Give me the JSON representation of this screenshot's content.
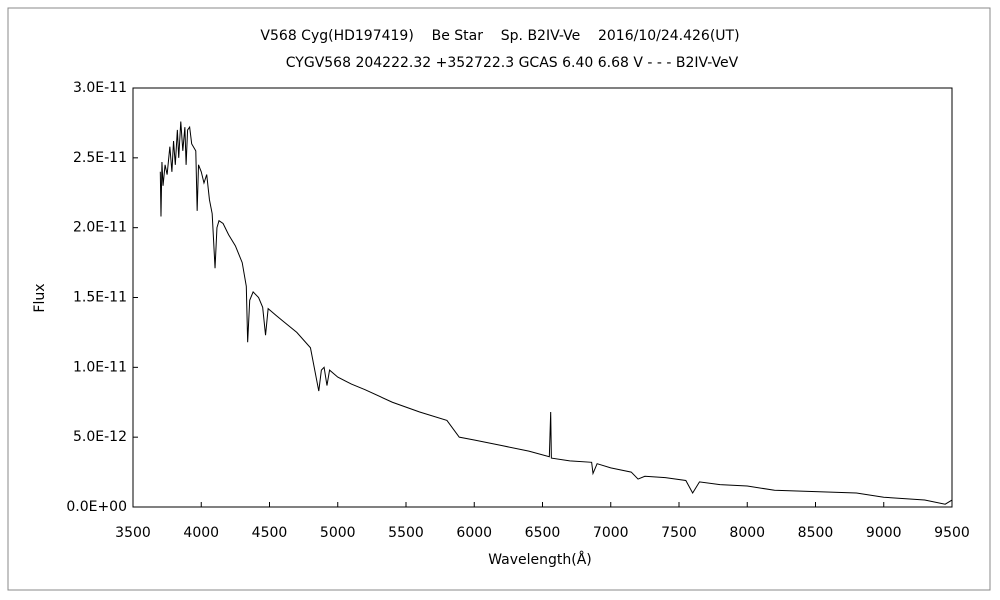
{
  "chart_data": {
    "type": "line",
    "title": "V568 Cyg(HD197419)    Be Star    Sp. B2IV-Ve    2016/10/24.426(UT)",
    "subtitle": "CYGV568 204222.32 +352722.3 GCAS 6.40 6.68 V - - - B2IV-VeV",
    "xlabel": "Wavelength(Å)",
    "ylabel": "Flux",
    "color": "#000000",
    "xlim": [
      3500,
      9500
    ],
    "xticks": [
      3500,
      4000,
      4500,
      5000,
      5500,
      6000,
      6500,
      7000,
      7500,
      8000,
      8500,
      9000,
      9500
    ],
    "ylim": [
      0,
      3e-11
    ],
    "yticks": [
      {
        "value": 0,
        "label": "0.0E+00"
      },
      {
        "value": 5e-12,
        "label": "5.0E-12"
      },
      {
        "value": 1e-11,
        "label": "1.0E-11"
      },
      {
        "value": 1.5e-11,
        "label": "1.5E-11"
      },
      {
        "value": 2e-11,
        "label": "2.0E-11"
      },
      {
        "value": 2.5e-11,
        "label": "2.5E-11"
      },
      {
        "value": 3e-11,
        "label": "3.0E-11"
      }
    ],
    "grid": false,
    "x": [
      3700,
      3705,
      3712,
      3720,
      3735,
      3750,
      3770,
      3785,
      3797,
      3810,
      3825,
      3835,
      3850,
      3865,
      3880,
      3889,
      3900,
      3915,
      3930,
      3960,
      3970,
      3980,
      4000,
      4020,
      4040,
      4060,
      4080,
      4101,
      4115,
      4130,
      4160,
      4200,
      4250,
      4300,
      4330,
      4340,
      4355,
      4380,
      4420,
      4450,
      4471,
      4490,
      4550,
      4600,
      4700,
      4800,
      4861,
      4880,
      4900,
      4921,
      4940,
      5000,
      5100,
      5200,
      5400,
      5600,
      5800,
      5890,
      6000,
      6200,
      6400,
      6550,
      6560,
      6565,
      6700,
      6860,
      6870,
      6900,
      7000,
      7150,
      7200,
      7250,
      7400,
      7550,
      7600,
      7650,
      7800,
      8000,
      8200,
      8500,
      8800,
      9000,
      9300,
      9450,
      9500
    ],
    "values": [
      2.4e-11,
      2.08e-11,
      2.47e-11,
      2.3e-11,
      2.45e-11,
      2.38e-11,
      2.58e-11,
      2.4e-11,
      2.62e-11,
      2.45e-11,
      2.7e-11,
      2.5e-11,
      2.76e-11,
      2.55e-11,
      2.72e-11,
      2.45e-11,
      2.7e-11,
      2.72e-11,
      2.6e-11,
      2.55e-11,
      2.12e-11,
      2.45e-11,
      2.4e-11,
      2.32e-11,
      2.38e-11,
      2.2e-11,
      2.1e-11,
      1.71e-11,
      2e-11,
      2.05e-11,
      2.03e-11,
      1.95e-11,
      1.87e-11,
      1.75e-11,
      1.58e-11,
      1.18e-11,
      1.48e-11,
      1.54e-11,
      1.5e-11,
      1.43e-11,
      1.23e-11,
      1.42e-11,
      1.37e-11,
      1.33e-11,
      1.25e-11,
      1.14e-11,
      8.3e-12,
      9.8e-12,
      1e-11,
      8.7e-12,
      9.8e-12,
      9.3e-12,
      8.8e-12,
      8.4e-12,
      7.5e-12,
      6.8e-12,
      6.2e-12,
      5e-12,
      4.8e-12,
      4.4e-12,
      4e-12,
      3.6e-12,
      6.8e-12,
      3.5e-12,
      3.3e-12,
      3.2e-12,
      2.4e-12,
      3.1e-12,
      2.8e-12,
      2.5e-12,
      2e-12,
      2.2e-12,
      2.1e-12,
      1.9e-12,
      1e-12,
      1.8e-12,
      1.6e-12,
      1.5e-12,
      1.2e-12,
      1.1e-12,
      1e-12,
      7e-13,
      5e-13,
      2e-13,
      5e-13
    ]
  }
}
